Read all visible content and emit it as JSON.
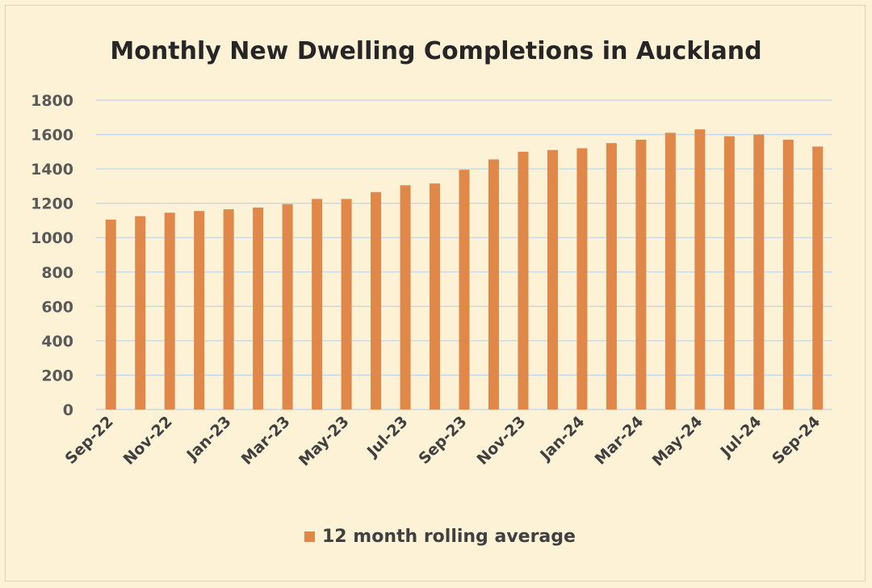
{
  "chart_data": {
    "type": "bar",
    "title": "Monthly New Dwelling Completions in Auckland",
    "categories": [
      "Sep-22",
      "Oct-22",
      "Nov-22",
      "Dec-22",
      "Jan-23",
      "Feb-23",
      "Mar-23",
      "Apr-23",
      "May-23",
      "Jun-23",
      "Jul-23",
      "Aug-23",
      "Sep-23",
      "Oct-23",
      "Nov-23",
      "Dec-23",
      "Jan-24",
      "Feb-24",
      "Mar-24",
      "Apr-24",
      "May-24",
      "Jun-24",
      "Jul-24",
      "Aug-24",
      "Sep-24"
    ],
    "x_tick_labels": [
      "Sep-22",
      "Nov-22",
      "Jan-23",
      "Mar-23",
      "May-23",
      "Jul-23",
      "Sep-23",
      "Nov-23",
      "Jan-24",
      "Mar-24",
      "May-24",
      "Jul-24",
      "Sep-24"
    ],
    "series": [
      {
        "name": "12 month rolling average",
        "color": "#e0874a",
        "values": [
          1105,
          1125,
          1145,
          1155,
          1165,
          1175,
          1195,
          1225,
          1225,
          1265,
          1305,
          1315,
          1395,
          1455,
          1500,
          1510,
          1520,
          1550,
          1570,
          1610,
          1630,
          1590,
          1600,
          1570,
          1530
        ]
      }
    ],
    "ylim": [
      0,
      1800
    ],
    "y_ticks": [
      0,
      200,
      400,
      600,
      800,
      1000,
      1200,
      1400,
      1600,
      1800
    ],
    "grid": true,
    "gridline_color": "#bdd7ee",
    "legend_position": "bottom",
    "xlabel": "",
    "ylabel": ""
  }
}
